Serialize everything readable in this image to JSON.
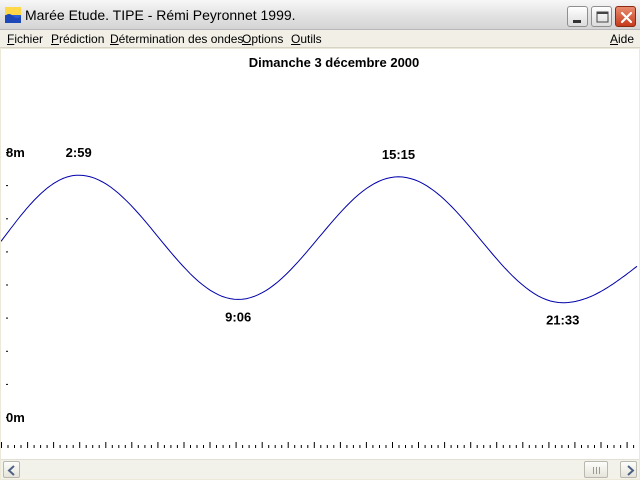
{
  "window": {
    "title": "Marée Etude. TIPE - Rémi Peyronnet 1999.",
    "icon": "tide-wave-app-icon",
    "controls": [
      "minimize-icon",
      "maximize-icon",
      "close-icon"
    ]
  },
  "menu": {
    "items": [
      "Fichier",
      "Prédiction",
      "Détermination des ondes",
      "Options",
      "Outils"
    ],
    "help": "Aide"
  },
  "chart_data": {
    "type": "line",
    "title": "Dimanche 3 décembre 2000",
    "y_top_label": "8m",
    "y_bottom_label": "0m",
    "ylim": [
      0,
      8
    ],
    "xlim": [
      0,
      24.4
    ],
    "series": [
      {
        "color": "#0000aa",
        "x": [
          0,
          2.98,
          9.1,
          15.25,
          21.55,
          24.4
        ],
        "y": [
          5.3,
          7.3,
          3.55,
          7.25,
          3.45,
          4.55
        ]
      }
    ],
    "annotations": [
      {
        "label": "2:59",
        "x": 2.98,
        "y": 7.3,
        "kind": "high"
      },
      {
        "label": "9:06",
        "x": 9.1,
        "y": 3.55,
        "kind": "low"
      },
      {
        "label": "15:15",
        "x": 15.25,
        "y": 7.25,
        "kind": "high"
      },
      {
        "label": "21:33",
        "x": 21.55,
        "y": 3.45,
        "kind": "low"
      }
    ],
    "grid": false
  }
}
